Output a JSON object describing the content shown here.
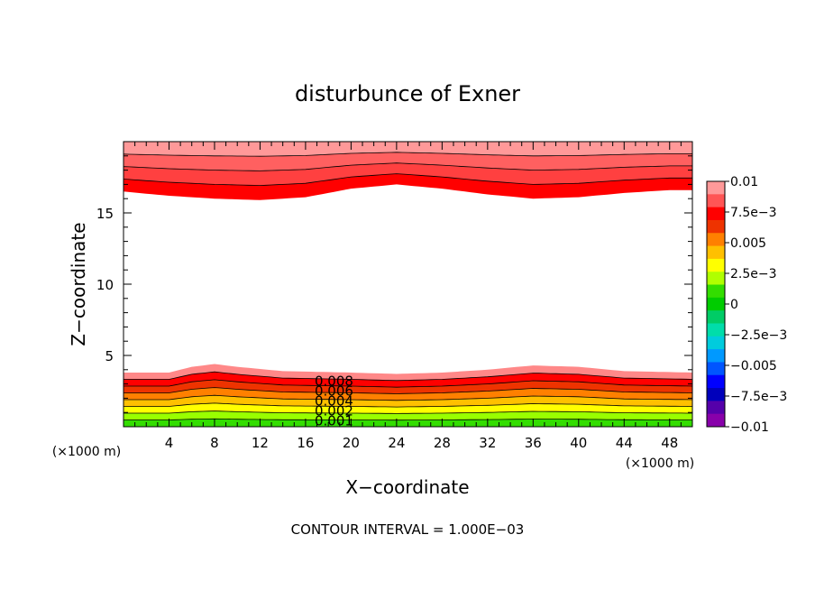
{
  "chart_data": {
    "type": "contour",
    "title": "disturbunce of Exner",
    "xlabel": "X−coordinate",
    "ylabel": "Z−coordinate",
    "x_unit_label": "(×1000 m)",
    "y_unit_label": "(×1000 m)",
    "xlim": [
      0,
      50
    ],
    "ylim": [
      0,
      20
    ],
    "x_ticks": [
      "4",
      "8",
      "12",
      "16",
      "20",
      "24",
      "28",
      "32",
      "36",
      "40",
      "44",
      "48"
    ],
    "y_ticks": [
      "5",
      "10",
      "15"
    ],
    "footer": "CONTOUR INTERVAL = 1.000E−03",
    "contour_interval": 0.001,
    "contour_labels": [
      "0.008",
      "0.006",
      "0.004",
      "0.002",
      "0.001"
    ],
    "upper_band": {
      "levels": [
        0.01,
        0.009,
        0.008,
        0.007
      ],
      "bottom_boundary": [
        [
          0,
          16.5
        ],
        [
          4,
          16.2
        ],
        [
          8,
          16.0
        ],
        [
          12,
          15.9
        ],
        [
          16,
          16.1
        ],
        [
          20,
          16.7
        ],
        [
          24,
          17.0
        ],
        [
          28,
          16.7
        ],
        [
          32,
          16.3
        ],
        [
          36,
          16.0
        ],
        [
          40,
          16.1
        ],
        [
          44,
          16.4
        ],
        [
          48,
          16.6
        ],
        [
          50,
          16.6
        ]
      ]
    },
    "lower_band": {
      "levels": [
        0.008,
        0.007,
        0.006,
        0.005,
        0.004,
        0.003,
        0.002,
        0.001
      ],
      "top_boundary": [
        [
          0,
          3.8
        ],
        [
          4,
          3.8
        ],
        [
          6,
          4.2
        ],
        [
          8,
          4.4
        ],
        [
          10,
          4.2
        ],
        [
          14,
          3.9
        ],
        [
          20,
          3.8
        ],
        [
          24,
          3.7
        ],
        [
          28,
          3.8
        ],
        [
          32,
          4.0
        ],
        [
          36,
          4.3
        ],
        [
          40,
          4.2
        ],
        [
          44,
          3.9
        ],
        [
          50,
          3.8
        ]
      ]
    },
    "colorbar": {
      "ticks": [
        "0.01",
        "7.5e−3",
        "0.005",
        "2.5e−3",
        "0",
        "−2.5e−3",
        "−0.005",
        "−7.5e−3",
        "−0.01"
      ],
      "colors": [
        "#ff9999",
        "#ff5555",
        "#ff0000",
        "#ee3300",
        "#ff8000",
        "#ffc000",
        "#ffff00",
        "#b0ff00",
        "#33dd00",
        "#00cc00",
        "#00cc66",
        "#00ddaa",
        "#00ccdd",
        "#0099ff",
        "#0055ff",
        "#0000ff",
        "#0000bb",
        "#5500aa",
        "#8800aa"
      ]
    }
  }
}
